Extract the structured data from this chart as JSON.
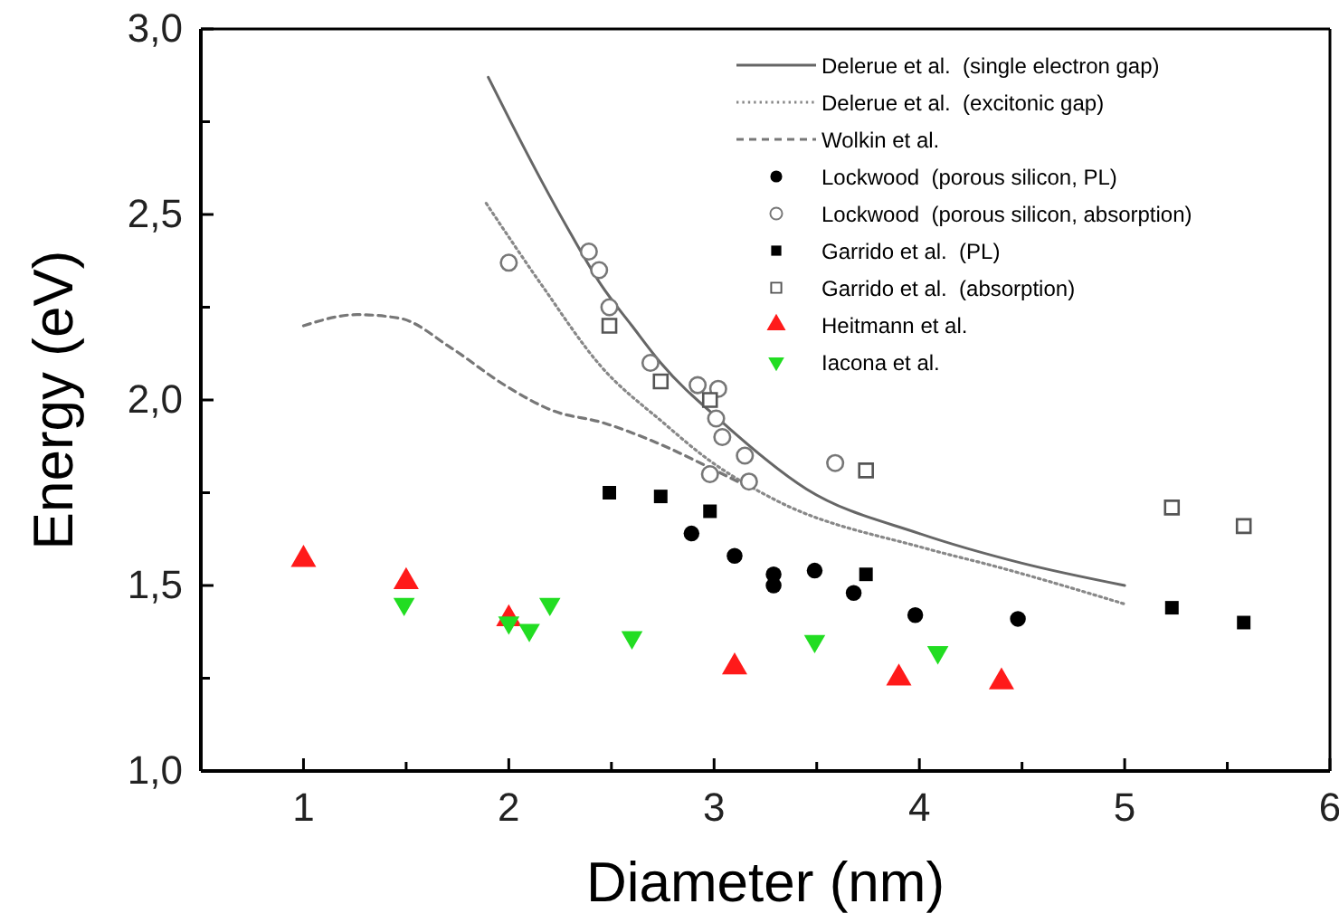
{
  "chart_data": {
    "type": "scatter",
    "xlabel": "Diameter (nm)",
    "ylabel": "Energy (eV)",
    "xlim": [
      0.5,
      6
    ],
    "ylim": [
      1.0,
      3.0
    ],
    "xticks": [
      {
        "value": 0.5,
        "label": null
      },
      1,
      {
        "value": 1.5,
        "label": null
      },
      2,
      {
        "value": 2.5,
        "label": null
      },
      3,
      {
        "value": 3.5,
        "label": null
      },
      4,
      {
        "value": 4.5,
        "label": null
      },
      5,
      {
        "value": 5.5,
        "label": null
      },
      6
    ],
    "yticks": [
      {
        "value": 1.0,
        "label": "1,0"
      },
      {
        "value": 1.25,
        "label": null
      },
      {
        "value": 1.5,
        "label": "1,5"
      },
      {
        "value": 1.75,
        "label": null
      },
      {
        "value": 2.0,
        "label": "2,0"
      },
      {
        "value": 2.25,
        "label": null
      },
      {
        "value": 2.5,
        "label": "2,5"
      },
      {
        "value": 2.75,
        "label": null
      },
      {
        "value": 3.0,
        "label": "3,0"
      }
    ],
    "grid": false,
    "legend": "top right",
    "series": [
      {
        "name": "Delerue et al.  (single electron gap)",
        "type": "line",
        "line_style": "solid",
        "color": "#666666",
        "x": [
          1.9,
          2.0,
          2.16,
          2.3,
          2.45,
          2.6,
          2.74,
          3.04,
          3.45,
          4.0,
          4.5,
          5.0
        ],
        "values": [
          2.87,
          2.76,
          2.59,
          2.45,
          2.31,
          2.2,
          2.1,
          1.94,
          1.76,
          1.64,
          1.56,
          1.5
        ]
      },
      {
        "name": "Delerue et al.  (excitonic gap)",
        "type": "line",
        "line_style": "dotted",
        "color": "#888888",
        "x": [
          1.89,
          2.16,
          2.45,
          2.75,
          2.97,
          3.3,
          4.03,
          4.38,
          5.0
        ],
        "values": [
          2.53,
          2.31,
          2.09,
          1.94,
          1.84,
          1.73,
          1.6,
          1.55,
          1.45
        ]
      },
      {
        "name": "Wolkin et al.",
        "type": "line",
        "line_style": "dashed",
        "color": "#777777",
        "x": [
          1.0,
          1.26,
          1.47,
          1.72,
          1.98,
          2.22,
          2.45,
          2.74,
          2.97,
          3.15
        ],
        "values": [
          2.2,
          2.23,
          2.22,
          2.14,
          2.04,
          1.97,
          1.94,
          1.88,
          1.82,
          1.77
        ]
      },
      {
        "name": "Lockwood  (porous silicon, PL)",
        "marker": "circle",
        "color": "#000000",
        "x": [
          2.89,
          3.1,
          3.29,
          3.29,
          3.49,
          3.68,
          3.98,
          4.48
        ],
        "values": [
          1.64,
          1.58,
          1.53,
          1.5,
          1.54,
          1.48,
          1.42,
          1.41
        ]
      },
      {
        "name": "Lockwood  (porous silicon, absorption)",
        "marker": "circle-open",
        "color": "#777777",
        "x": [
          2.0,
          2.39,
          2.44,
          2.49,
          2.69,
          2.92,
          3.02,
          3.01,
          3.04,
          3.15,
          3.17,
          2.98,
          3.59
        ],
        "values": [
          2.37,
          2.4,
          2.35,
          2.25,
          2.1,
          2.04,
          2.03,
          1.95,
          1.9,
          1.85,
          1.78,
          1.8,
          1.83
        ]
      },
      {
        "name": "Garrido et al.  (PL)",
        "marker": "square",
        "color": "#000000",
        "x": [
          2.49,
          2.74,
          2.98,
          3.74,
          5.23,
          5.58
        ],
        "values": [
          1.75,
          1.74,
          1.7,
          1.53,
          1.44,
          1.4
        ]
      },
      {
        "name": "Garrido et al.  (absorption)",
        "marker": "square-open",
        "color": "#555555",
        "x": [
          2.49,
          2.74,
          2.98,
          3.74,
          5.23,
          5.58
        ],
        "values": [
          2.2,
          2.05,
          2.0,
          1.81,
          1.71,
          1.66
        ]
      },
      {
        "name": "Heitmann et al.",
        "marker": "triangle",
        "color": "#ff1a1a",
        "x": [
          1.0,
          1.5,
          2.0,
          3.1,
          3.9,
          4.4
        ],
        "values": [
          1.57,
          1.51,
          1.41,
          1.28,
          1.25,
          1.24
        ]
      },
      {
        "name": "Iacona et al.",
        "marker": "triangle-down",
        "color": "#22dd22",
        "x": [
          1.49,
          2.0,
          2.1,
          2.2,
          2.6,
          3.49,
          4.09
        ],
        "values": [
          1.45,
          1.4,
          1.38,
          1.45,
          1.36,
          1.35,
          1.32
        ]
      }
    ]
  }
}
